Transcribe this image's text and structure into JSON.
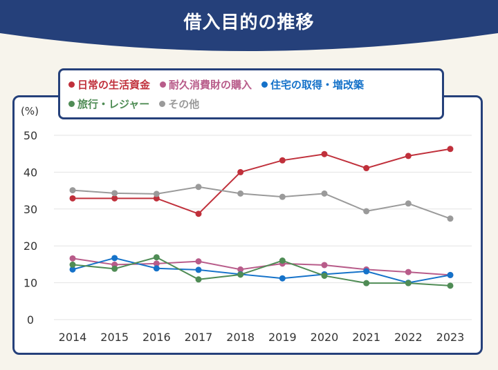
{
  "title": "借入目的の推移",
  "colors": {
    "banner": "#25407a",
    "frame": "#25407a",
    "background": "#f7f4ec",
    "grid": "#e3e3e3"
  },
  "chart_data": {
    "type": "line",
    "title": "借入目的の推移",
    "ylabel": "(%)",
    "xlabel": "",
    "ylim": [
      0,
      50
    ],
    "yticks": [
      "0",
      "10",
      "20",
      "30",
      "40",
      "50"
    ],
    "grid": true,
    "legend_placement": "top",
    "x": [
      "2014",
      "2015",
      "2016",
      "2017",
      "2018",
      "2019",
      "2020",
      "2021",
      "2022",
      "2023"
    ],
    "series": [
      {
        "name": "日常の生活資金",
        "color": "#c0303b",
        "values": [
          32.9,
          32.9,
          32.9,
          28.7,
          40.0,
          43.2,
          44.9,
          41.1,
          44.4,
          46.3
        ]
      },
      {
        "name": "耐久消費財の購入",
        "color": "#b85c8a",
        "values": [
          16.6,
          14.9,
          15.2,
          15.8,
          13.6,
          15.2,
          14.8,
          13.6,
          12.9,
          12.1
        ]
      },
      {
        "name": "住宅の取得・増改築",
        "color": "#1572c9",
        "values": [
          13.6,
          16.7,
          13.9,
          13.5,
          12.3,
          11.2,
          12.3,
          13.1,
          10.0,
          12.1
        ]
      },
      {
        "name": "旅行・レジャー",
        "color": "#4f8c55",
        "values": [
          14.9,
          13.8,
          16.9,
          10.9,
          12.2,
          16.0,
          11.9,
          9.9,
          9.9,
          9.2
        ]
      },
      {
        "name": "その他",
        "color": "#9a9a9a",
        "values": [
          35.1,
          34.3,
          34.1,
          36.0,
          34.2,
          33.3,
          34.2,
          29.4,
          31.5,
          27.4
        ]
      }
    ]
  }
}
